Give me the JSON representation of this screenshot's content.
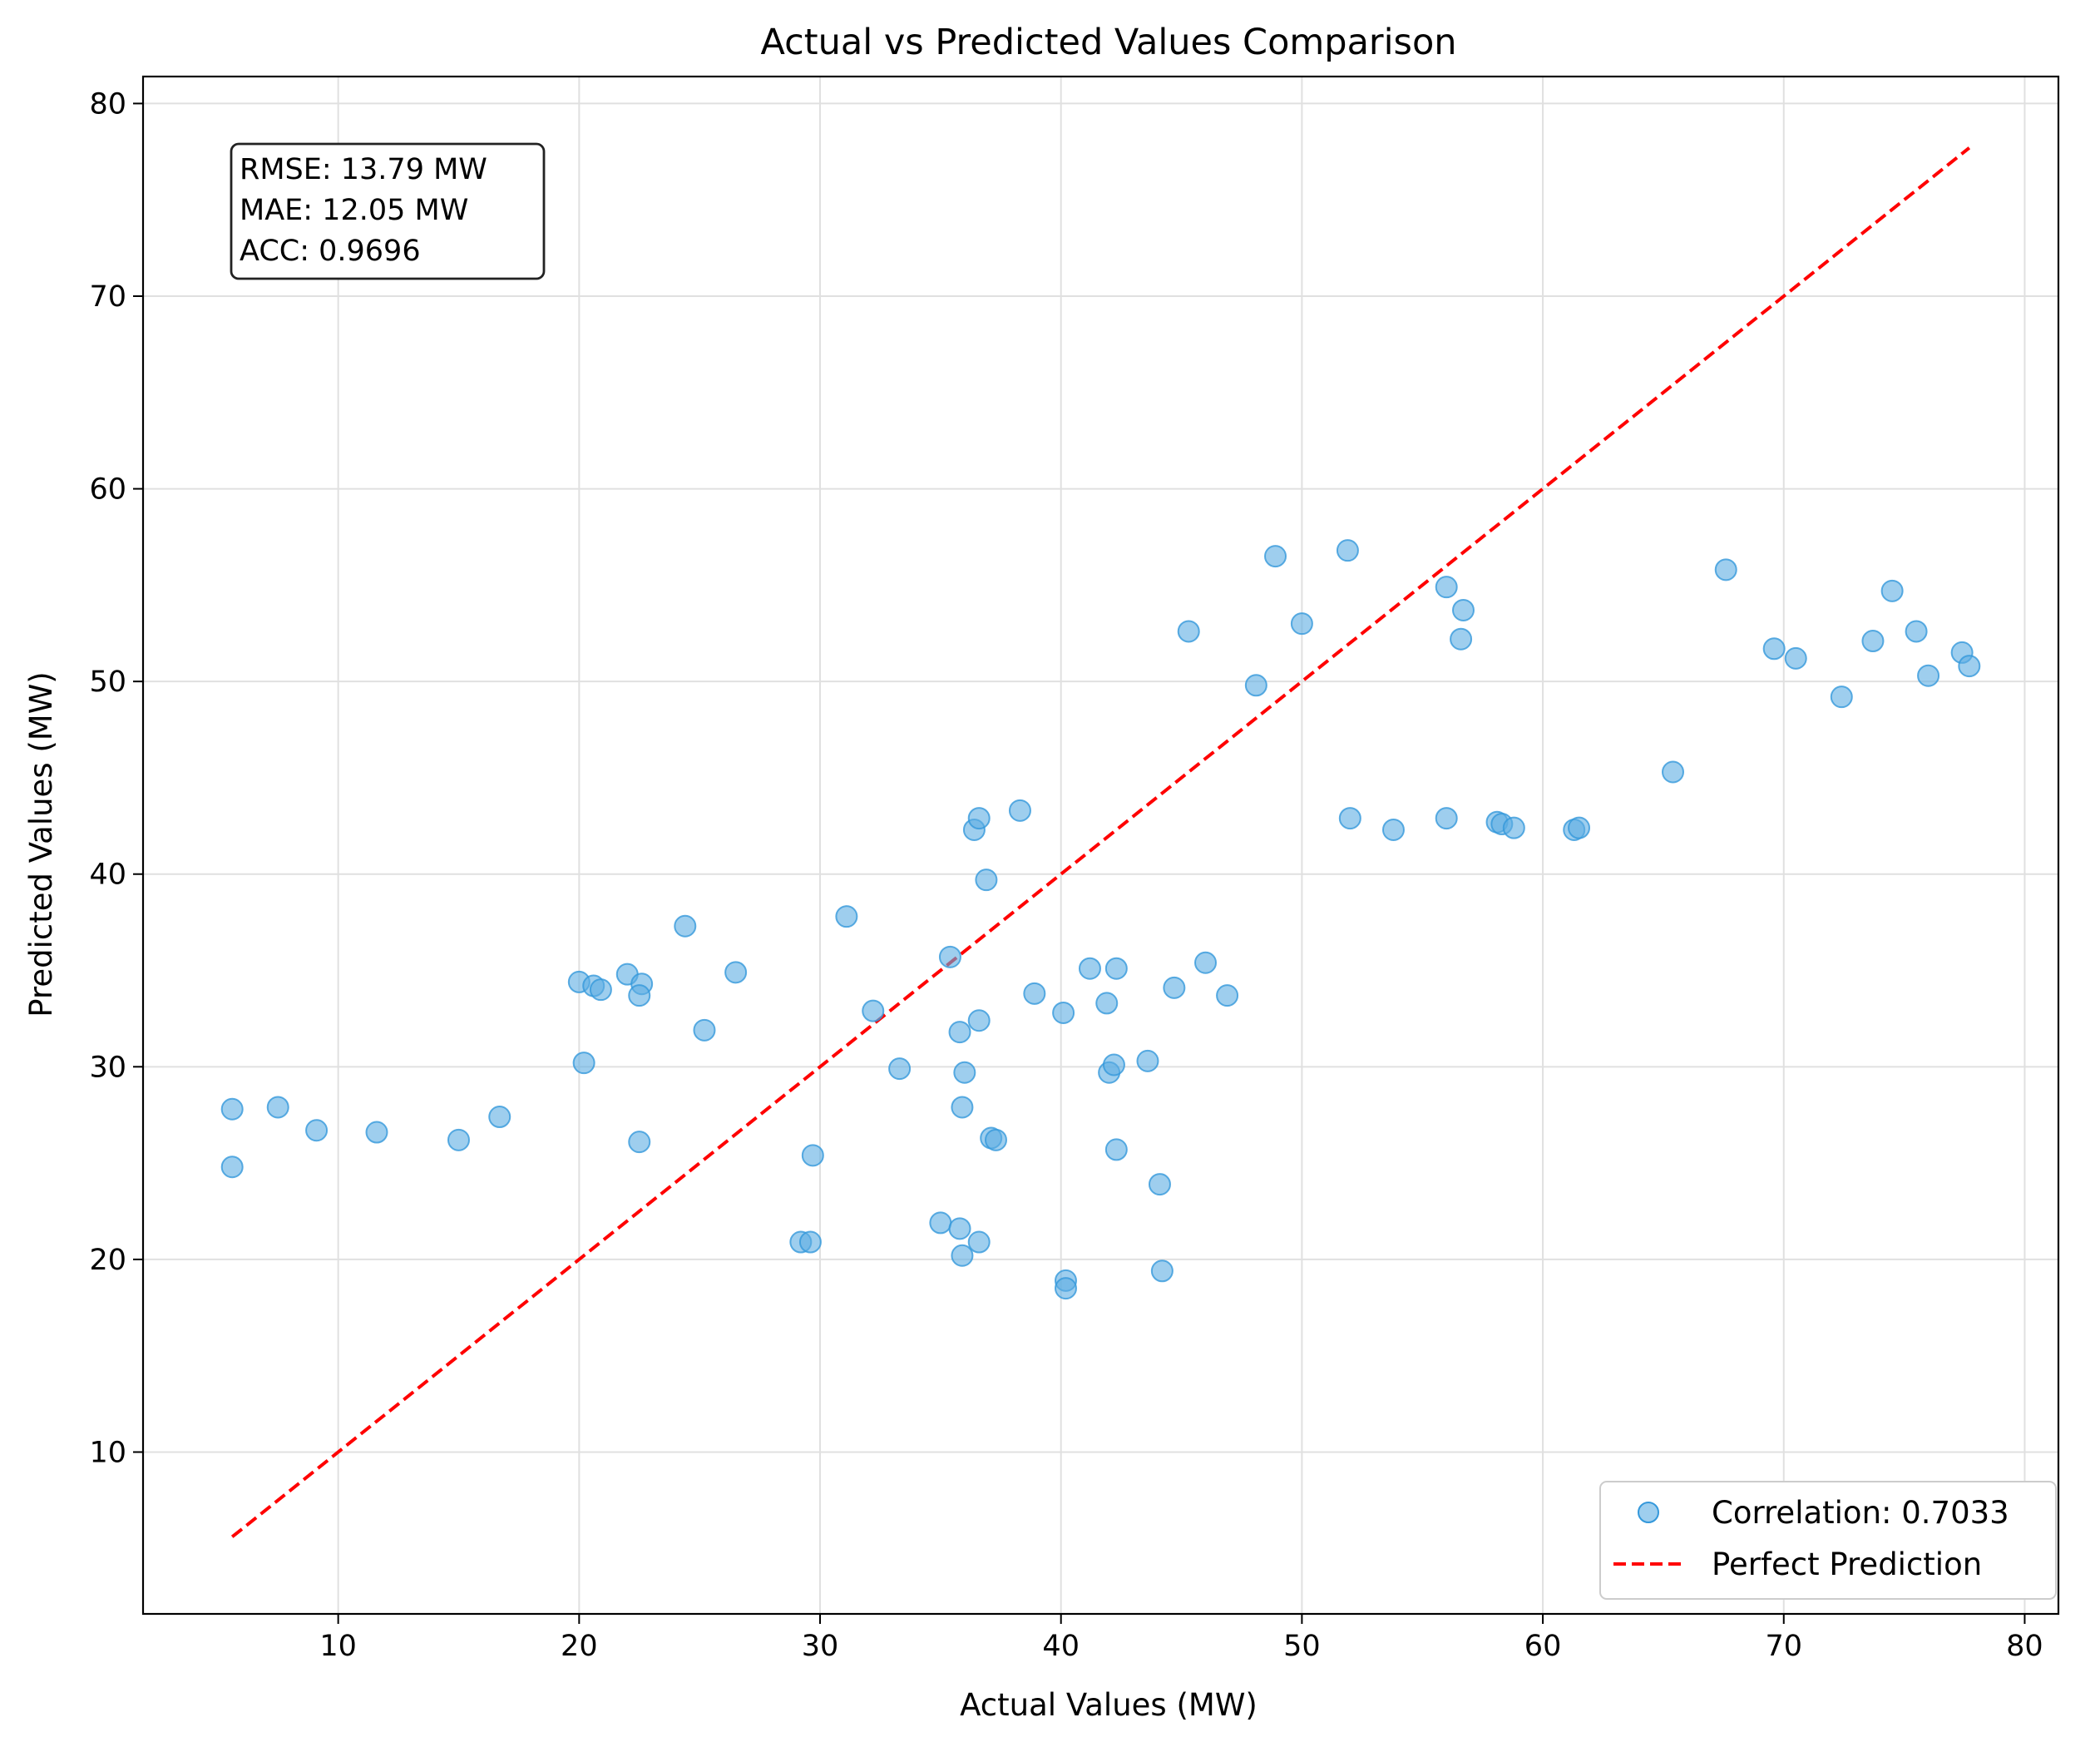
{
  "chart_data": {
    "type": "scatter",
    "title": "Actual vs Predicted Values Comparison",
    "xlabel": "Actual Values (MW)",
    "ylabel": "Predicted Values (MW)",
    "xlim": [
      1.9,
      81.4
    ],
    "ylim": [
      1.6,
      81.4
    ],
    "xticks": [
      10,
      20,
      30,
      40,
      50,
      60,
      70,
      80
    ],
    "yticks": [
      10,
      20,
      30,
      40,
      50,
      60,
      70,
      80
    ],
    "grid": true,
    "legend_position": "lower-right",
    "stats_box": {
      "lines": [
        "RMSE: 13.79 MW",
        "MAE: 12.05 MW",
        "ACC: 0.9696"
      ]
    },
    "series": [
      {
        "name": "Correlation: 0.7033",
        "kind": "scatter",
        "color": "#5DADE2",
        "points": [
          [
            5.6,
            27.8
          ],
          [
            5.6,
            24.8
          ],
          [
            7.5,
            27.9
          ],
          [
            9.1,
            26.7
          ],
          [
            11.6,
            26.6
          ],
          [
            15.0,
            26.2
          ],
          [
            16.7,
            27.4
          ],
          [
            20.0,
            34.4
          ],
          [
            20.2,
            30.2
          ],
          [
            20.6,
            34.2
          ],
          [
            20.9,
            34.0
          ],
          [
            22.0,
            34.8
          ],
          [
            22.6,
            34.3
          ],
          [
            22.5,
            33.7
          ],
          [
            22.5,
            26.1
          ],
          [
            24.4,
            37.3
          ],
          [
            25.2,
            31.9
          ],
          [
            26.5,
            34.9
          ],
          [
            29.2,
            20.9
          ],
          [
            29.6,
            20.9
          ],
          [
            29.7,
            25.4
          ],
          [
            31.1,
            37.8
          ],
          [
            32.2,
            32.9
          ],
          [
            33.3,
            29.9
          ],
          [
            35.0,
            21.9
          ],
          [
            35.4,
            35.7
          ],
          [
            35.8,
            31.8
          ],
          [
            35.8,
            21.6
          ],
          [
            35.9,
            27.9
          ],
          [
            35.9,
            20.2
          ],
          [
            36.0,
            29.7
          ],
          [
            36.4,
            42.3
          ],
          [
            36.6,
            42.9
          ],
          [
            36.6,
            32.4
          ],
          [
            36.6,
            20.9
          ],
          [
            36.9,
            39.7
          ],
          [
            37.1,
            26.3
          ],
          [
            37.3,
            26.2
          ],
          [
            38.3,
            43.3
          ],
          [
            38.9,
            33.8
          ],
          [
            40.1,
            32.8
          ],
          [
            40.2,
            18.9
          ],
          [
            40.2,
            18.5
          ],
          [
            41.2,
            35.1
          ],
          [
            41.9,
            33.3
          ],
          [
            42.0,
            29.7
          ],
          [
            42.2,
            30.1
          ],
          [
            42.3,
            35.1
          ],
          [
            42.3,
            25.7
          ],
          [
            43.6,
            30.3
          ],
          [
            44.1,
            23.9
          ],
          [
            44.2,
            19.4
          ],
          [
            44.7,
            34.1
          ],
          [
            46.0,
            35.4
          ],
          [
            46.9,
            33.7
          ],
          [
            45.3,
            52.6
          ],
          [
            48.1,
            49.8
          ],
          [
            48.9,
            56.5
          ],
          [
            50.0,
            53.0
          ],
          [
            51.9,
            56.8
          ],
          [
            52.0,
            42.9
          ],
          [
            53.8,
            42.3
          ],
          [
            56.0,
            54.9
          ],
          [
            56.0,
            42.9
          ],
          [
            56.6,
            52.2
          ],
          [
            56.7,
            53.7
          ],
          [
            58.1,
            42.7
          ],
          [
            58.3,
            42.6
          ],
          [
            58.8,
            42.4
          ],
          [
            61.3,
            42.3
          ],
          [
            61.5,
            42.4
          ],
          [
            65.4,
            45.3
          ],
          [
            67.6,
            55.8
          ],
          [
            69.6,
            51.7
          ],
          [
            70.5,
            51.2
          ],
          [
            72.4,
            49.2
          ],
          [
            73.7,
            52.1
          ],
          [
            74.5,
            54.7
          ],
          [
            75.5,
            52.6
          ],
          [
            76.0,
            50.3
          ],
          [
            77.4,
            51.5
          ],
          [
            77.7,
            50.8
          ]
        ]
      },
      {
        "name": "Perfect Prediction",
        "kind": "line",
        "color": "#FF0000",
        "dash": "dashed",
        "x": [
          5.6,
          77.7
        ],
        "y": [
          5.6,
          77.7
        ]
      }
    ]
  },
  "colors": {
    "scatter_fill": "#5DADE2",
    "scatter_edge": "#3498DB",
    "reference_line": "#FF0000",
    "grid": "#E0E0E0",
    "axes": "#000000"
  }
}
